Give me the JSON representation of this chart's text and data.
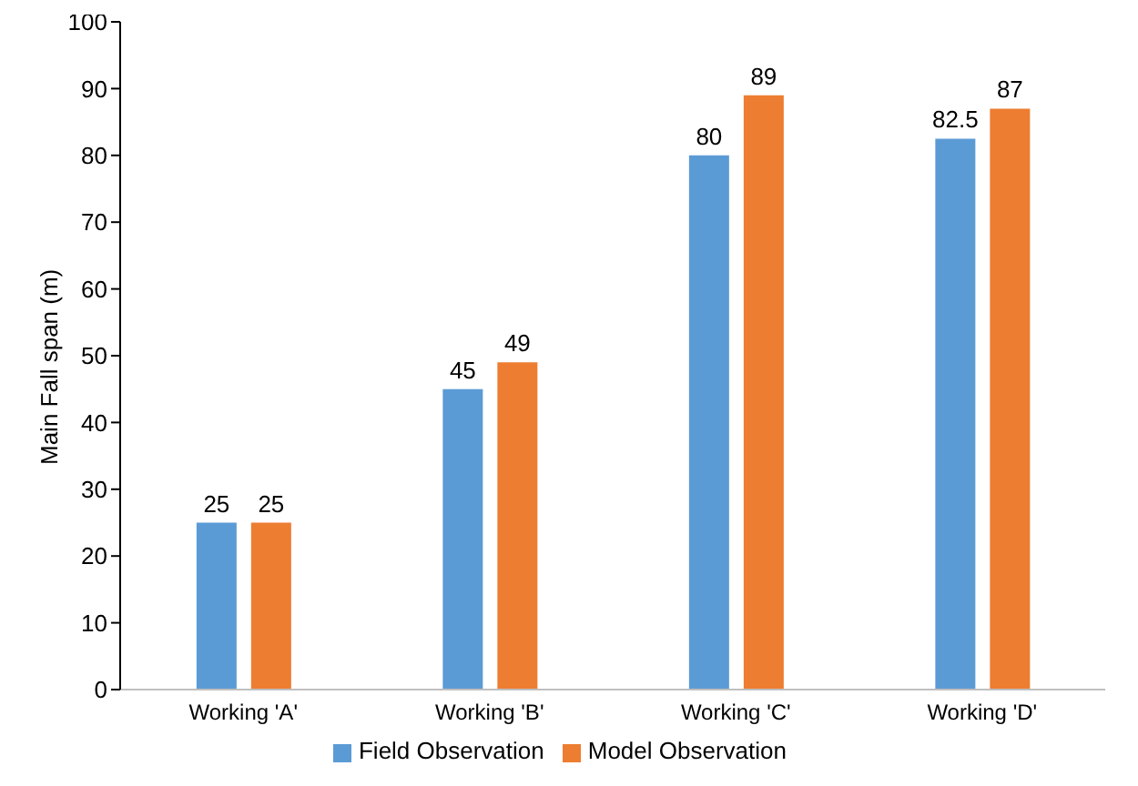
{
  "chart_data": {
    "type": "bar",
    "ylabel": "Main Fall span (m)",
    "categories": [
      "Working 'A'",
      "Working 'B'",
      "Working 'C'",
      "Working 'D'"
    ],
    "series": [
      {
        "name": "Field Observation",
        "color": "#5b9bd5",
        "values": [
          25,
          45,
          80,
          82.5
        ]
      },
      {
        "name": "Model Observation",
        "color": "#ed7d31",
        "values": [
          25,
          49,
          89,
          87
        ]
      }
    ],
    "ylim": [
      0,
      100
    ],
    "yticks": [
      0,
      10,
      20,
      30,
      40,
      50,
      60,
      70,
      80,
      90,
      100
    ],
    "data_labels": true,
    "legend": "bottom",
    "grid": false
  }
}
